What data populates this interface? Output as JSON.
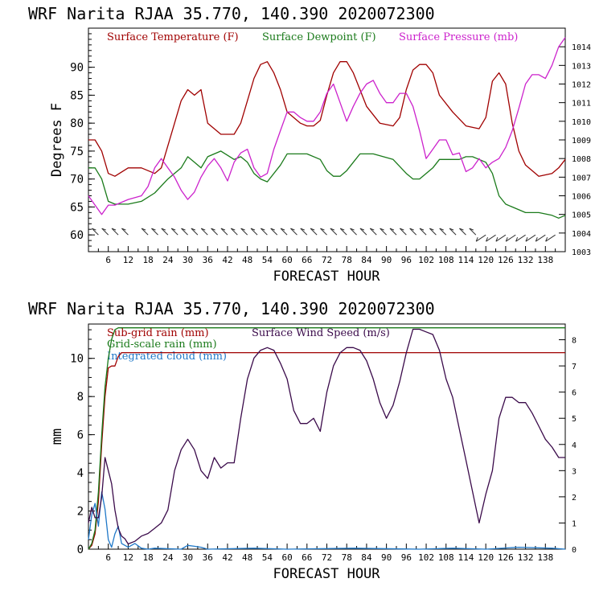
{
  "colors": {
    "temp": "#a00000",
    "dew": "#1a7a1a",
    "pressure": "#cc22cc",
    "subgrid": "#a00000",
    "gridscale": "#1a7a1a",
    "cloud": "#1f78c8",
    "wind": "#3a0a4a",
    "axis": "#000000"
  },
  "chart_data": [
    {
      "type": "line",
      "title": "WRF   Narita RJAA    35.770, 140.390  2020072300",
      "xlabel": "FORECAST HOUR",
      "ylabel": "Degrees F",
      "xlim": [
        0,
        144
      ],
      "ylim": [
        57,
        97
      ],
      "y2lim": [
        1003,
        1015
      ],
      "x_ticks": [
        6,
        12,
        18,
        24,
        30,
        36,
        42,
        48,
        54,
        60,
        66,
        72,
        78,
        84,
        90,
        96,
        102,
        108,
        114,
        120,
        126,
        132,
        138
      ],
      "y_ticks": [
        60,
        65,
        70,
        75,
        80,
        85,
        90
      ],
      "y2_ticks": [
        1003,
        1004,
        1005,
        1006,
        1007,
        1008,
        1009,
        1010,
        1011,
        1012,
        1013,
        1014
      ],
      "legend": [
        "Surface Temperature (F)",
        "Surface Dewpoint (F)",
        "Surface Pressure (mb)"
      ],
      "series": [
        {
          "name": "Surface Temperature (F)",
          "axis": "left",
          "x": [
            0,
            2,
            4,
            6,
            8,
            12,
            16,
            20,
            22,
            26,
            28,
            30,
            32,
            34,
            36,
            40,
            44,
            46,
            48,
            50,
            52,
            54,
            56,
            58,
            60,
            64,
            66,
            68,
            70,
            72,
            74,
            76,
            78,
            80,
            82,
            84,
            88,
            92,
            94,
            96,
            98,
            100,
            102,
            104,
            106,
            110,
            114,
            118,
            120,
            122,
            124,
            126,
            128,
            130,
            132,
            136,
            140,
            142,
            144
          ],
          "y": [
            77,
            77,
            75,
            71,
            70.5,
            72,
            72,
            71,
            72,
            80,
            84,
            86,
            85,
            86,
            80,
            78,
            78,
            80,
            84,
            88,
            90.5,
            91,
            89,
            86,
            82,
            80,
            79.5,
            79.5,
            80.5,
            85,
            89,
            91,
            91,
            89,
            86,
            83,
            80,
            79.5,
            81,
            86,
            89.5,
            90.5,
            90.5,
            89,
            85,
            82,
            79.5,
            79,
            81,
            87.5,
            89,
            87,
            80,
            75,
            72.5,
            70.5,
            71,
            72,
            73.5
          ]
        },
        {
          "name": "Surface Dewpoint (F)",
          "axis": "left",
          "x": [
            0,
            2,
            4,
            6,
            8,
            12,
            16,
            20,
            24,
            28,
            30,
            32,
            34,
            36,
            40,
            44,
            46,
            48,
            50,
            52,
            54,
            58,
            60,
            64,
            66,
            70,
            72,
            74,
            76,
            78,
            80,
            82,
            86,
            92,
            96,
            98,
            100,
            102,
            104,
            106,
            108,
            112,
            114,
            116,
            118,
            120,
            122,
            124,
            126,
            128,
            132,
            136,
            140,
            142,
            144
          ],
          "y": [
            72,
            72,
            70,
            66,
            65.5,
            65.5,
            66,
            67.5,
            70,
            72,
            74,
            73,
            72,
            74,
            75,
            73.5,
            74,
            73,
            71,
            70,
            69.5,
            72.5,
            74.5,
            74.5,
            74.5,
            73.5,
            71.5,
            70.5,
            70.5,
            71.5,
            73,
            74.5,
            74.5,
            73.5,
            71,
            70,
            70,
            71,
            72,
            73.5,
            73.5,
            73.5,
            74,
            74,
            73.5,
            73,
            71,
            67,
            65.5,
            65,
            64,
            64,
            63.5,
            63,
            63.5
          ]
        },
        {
          "name": "Surface Pressure (mb)",
          "axis": "right",
          "x": [
            0,
            2,
            4,
            6,
            8,
            12,
            16,
            18,
            20,
            22,
            24,
            26,
            28,
            30,
            32,
            34,
            36,
            38,
            40,
            42,
            44,
            46,
            48,
            50,
            52,
            54,
            56,
            58,
            60,
            62,
            64,
            66,
            68,
            70,
            72,
            74,
            76,
            78,
            80,
            82,
            84,
            86,
            88,
            90,
            92,
            94,
            96,
            98,
            100,
            102,
            104,
            106,
            108,
            110,
            112,
            114,
            116,
            118,
            120,
            122,
            124,
            126,
            128,
            130,
            132,
            134,
            136,
            138,
            140,
            142,
            144
          ],
          "y": [
            1006,
            1005.5,
            1005,
            1005.5,
            1005.5,
            1005.8,
            1006,
            1006.5,
            1007.5,
            1008,
            1007.5,
            1007,
            1006.3,
            1005.8,
            1006.2,
            1007,
            1007.6,
            1008,
            1007.5,
            1006.8,
            1007.8,
            1008.3,
            1008.5,
            1007.5,
            1007,
            1007.2,
            1008.5,
            1009.5,
            1010.5,
            1010.5,
            1010.2,
            1010,
            1010,
            1010.5,
            1011.5,
            1012,
            1011,
            1010,
            1010.8,
            1011.5,
            1012,
            1012.2,
            1011.5,
            1011,
            1011,
            1011.5,
            1011.5,
            1010.8,
            1009.5,
            1008,
            1008.5,
            1009,
            1009,
            1008.2,
            1008.3,
            1007.3,
            1007.5,
            1008,
            1007.5,
            1007.8,
            1008,
            1008.6,
            1009.5,
            1010.7,
            1012,
            1012.5,
            1012.5,
            1012.3,
            1013,
            1014,
            1014.5
          ]
        }
      ],
      "wind_barbs_hours": [
        3,
        6,
        9,
        12,
        18,
        21,
        24,
        27,
        30,
        33,
        36,
        39,
        42,
        45,
        48,
        51,
        54,
        57,
        60,
        63,
        66,
        69,
        72,
        75,
        78,
        81,
        84,
        87,
        90,
        93,
        96,
        99,
        102,
        105,
        108,
        111,
        114,
        117,
        120,
        123,
        126,
        129,
        132,
        135,
        138,
        141
      ]
    },
    {
      "type": "line",
      "title": "WRF   Narita RJAA    35.770, 140.390  2020072300",
      "xlabel": "FORECAST HOUR",
      "ylabel": "mm",
      "xlim": [
        0,
        144
      ],
      "ylim": [
        0,
        11.8
      ],
      "y2lim": [
        0,
        8.6
      ],
      "x_ticks": [
        6,
        12,
        18,
        24,
        30,
        36,
        42,
        48,
        54,
        60,
        66,
        72,
        78,
        84,
        90,
        96,
        102,
        108,
        114,
        120,
        126,
        132,
        138
      ],
      "y_ticks": [
        0,
        2,
        4,
        6,
        8,
        10
      ],
      "y2_ticks": [
        0,
        1,
        2,
        3,
        4,
        5,
        6,
        7,
        8
      ],
      "legend": [
        "Sub-grid rain (mm)",
        "Grid-scale rain (mm)",
        "Integrated cloud (mm)",
        "Surface Wind Speed (m/s)"
      ],
      "series": [
        {
          "name": "Sub-grid rain (mm)",
          "axis": "left",
          "x": [
            0,
            1,
            2,
            3,
            4,
            5,
            6,
            7,
            8,
            9,
            10,
            144
          ],
          "y": [
            0,
            0.2,
            0.8,
            2.5,
            5.5,
            8,
            9.5,
            9.6,
            9.6,
            10.1,
            10.3,
            10.3
          ]
        },
        {
          "name": "Grid-scale rain (mm)",
          "axis": "left",
          "x": [
            0,
            1,
            2,
            3,
            4,
            5,
            6,
            7,
            8,
            9,
            144
          ],
          "y": [
            0,
            0.3,
            1,
            3,
            6,
            8.5,
            10,
            11,
            11.5,
            11.6,
            11.6
          ]
        },
        {
          "name": "Integrated cloud (mm)",
          "axis": "left",
          "x": [
            0,
            1,
            2,
            3,
            4,
            5,
            6,
            7,
            8,
            9,
            10,
            12,
            14,
            16,
            18,
            20,
            28,
            30,
            32,
            34,
            36,
            50,
            60,
            80,
            100,
            110,
            120,
            130,
            140,
            144
          ],
          "y": [
            0.5,
            1.8,
            2.4,
            1.2,
            3,
            2.1,
            0.5,
            0.1,
            0.8,
            1.2,
            0.3,
            0.1,
            0.3,
            0.05,
            0,
            0.05,
            0,
            0.2,
            0.15,
            0.1,
            0,
            0.05,
            0,
            0.05,
            0,
            0.05,
            0,
            0.1,
            0.05,
            0
          ]
        },
        {
          "name": "Surface Wind Speed (m/s)",
          "axis": "right",
          "x": [
            0,
            1,
            2,
            3,
            4,
            5,
            6,
            7,
            8,
            9,
            10,
            11,
            12,
            14,
            16,
            18,
            20,
            22,
            24,
            26,
            28,
            30,
            32,
            34,
            36,
            38,
            40,
            42,
            44,
            46,
            48,
            50,
            52,
            54,
            56,
            58,
            60,
            62,
            64,
            66,
            68,
            70,
            72,
            74,
            76,
            78,
            80,
            82,
            84,
            86,
            88,
            90,
            92,
            94,
            96,
            98,
            100,
            102,
            104,
            106,
            108,
            110,
            112,
            114,
            116,
            118,
            120,
            122,
            124,
            126,
            128,
            130,
            132,
            134,
            136,
            138,
            140,
            142,
            144
          ],
          "y": [
            1,
            1.6,
            1.2,
            1.2,
            2,
            3.5,
            3,
            2.5,
            1.5,
            0.8,
            0.5,
            0.4,
            0.2,
            0.3,
            0.5,
            0.6,
            0.8,
            1,
            1.5,
            3,
            3.8,
            4.2,
            3.8,
            3,
            2.7,
            3.5,
            3.1,
            3.3,
            3.3,
            5,
            6.5,
            7.3,
            7.6,
            7.7,
            7.6,
            7.1,
            6.5,
            5.3,
            4.8,
            4.8,
            5,
            4.5,
            6,
            7,
            7.5,
            7.7,
            7.7,
            7.6,
            7.2,
            6.5,
            5.6,
            5.0,
            5.5,
            6.4,
            7.5,
            8.4,
            8.4,
            8.3,
            8.2,
            7.6,
            6.5,
            5.8,
            4.6,
            3.4,
            2.2,
            1.0,
            2.1,
            3.0,
            5.0,
            5.8,
            5.8,
            5.6,
            5.6,
            5.2,
            4.7,
            4.2,
            3.9,
            3.5,
            3.5
          ]
        }
      ]
    }
  ]
}
